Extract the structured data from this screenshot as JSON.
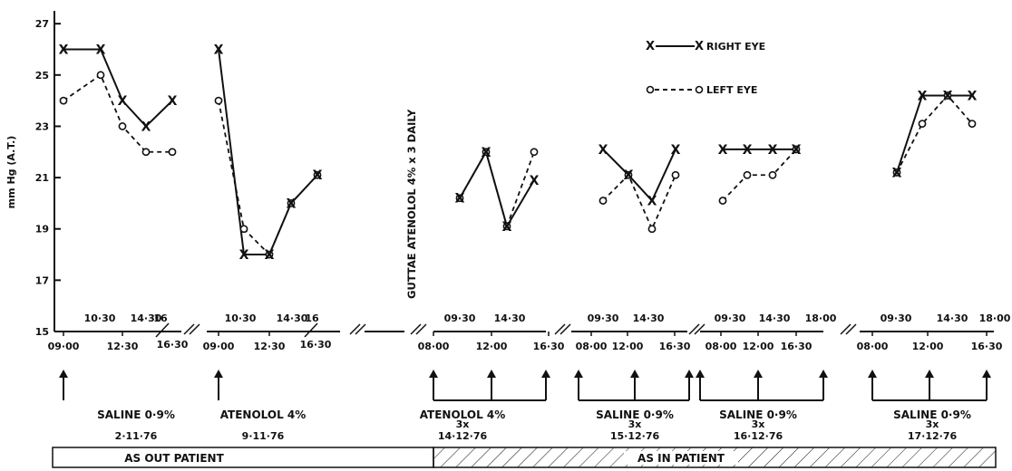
{
  "chart_data": {
    "type": "line",
    "title": "",
    "xlabel": "",
    "ylabel": "mm Hg (A.T.)",
    "ylim": [
      15,
      27.5
    ],
    "y_ticks": [
      "15",
      "17",
      "19",
      "21",
      "23",
      "25",
      "27"
    ],
    "grid": false,
    "legend_position": "top-right",
    "legend": {
      "right": "RIGHT EYE",
      "left": "LEFT EYE"
    },
    "vertical_note": "GUTTAE ATENOLOL 4% x 3 DAILY",
    "status_labels": {
      "out_patient": "AS OUT PATIENT",
      "in_patient": "AS IN PATIENT"
    },
    "sessions": [
      {
        "id": "s1",
        "treatment": "SALINE 0·9%",
        "dose": "",
        "date": "2·11·76",
        "ticks_lower": [
          "09·00",
          "12·30"
        ],
        "ticks_upper": [
          "10·30",
          "14·30",
          "16"
        ],
        "ticks_extra": [
          "16·30"
        ],
        "series": [
          {
            "name": "RIGHT EYE",
            "values": [
              26,
              26,
              24,
              23,
              24
            ]
          },
          {
            "name": "LEFT EYE",
            "values": [
              24,
              25,
              23,
              22,
              22
            ]
          }
        ]
      },
      {
        "id": "s2",
        "treatment": "ATENOLOL 4%",
        "dose": "",
        "date": "9·11·76",
        "ticks_lower": [
          "09·00",
          "12·30"
        ],
        "ticks_upper": [
          "10·30",
          "14·30",
          "16"
        ],
        "ticks_extra": [
          "16·30"
        ],
        "series": [
          {
            "name": "RIGHT EYE",
            "values": [
              26,
              18,
              18,
              20,
              21.1
            ]
          },
          {
            "name": "LEFT EYE",
            "values": [
              24,
              19,
              18,
              20,
              21.1
            ]
          }
        ]
      },
      {
        "id": "s3",
        "treatment": "ATENOLOL 4%",
        "dose": "3x",
        "date": "14·12·76",
        "ticks_lower": [
          "08·00",
          "12·00",
          "16·30"
        ],
        "ticks_upper": [
          "09·30",
          "14·30"
        ],
        "ticks_extra": [],
        "series": [
          {
            "name": "RIGHT EYE",
            "values": [
              20.2,
              22,
              19.1,
              20.9
            ]
          },
          {
            "name": "LEFT EYE",
            "values": [
              20.2,
              22,
              19.1,
              22
            ]
          }
        ]
      },
      {
        "id": "s4",
        "treatment": "SALINE 0·9%",
        "dose": "3x",
        "date": "15·12·76",
        "ticks_lower": [
          "08·00",
          "12·00",
          "16·30"
        ],
        "ticks_upper": [
          "09·30",
          "14·30"
        ],
        "ticks_extra": [],
        "series": [
          {
            "name": "RIGHT EYE",
            "values": [
              22.1,
              21.1,
              20.1,
              22.1
            ]
          },
          {
            "name": "LEFT EYE",
            "values": [
              20.1,
              21.1,
              19,
              21.1
            ]
          }
        ]
      },
      {
        "id": "s5",
        "treatment": "SALINE 0·9%",
        "dose": "3x",
        "date": "16·12·76",
        "ticks_lower": [
          "08·00",
          "12·00",
          "16·30"
        ],
        "ticks_upper": [
          "09·30",
          "14·30",
          "18·00"
        ],
        "ticks_extra": [],
        "series": [
          {
            "name": "RIGHT EYE",
            "values": [
              22.1,
              22.1,
              22.1,
              22.1
            ]
          },
          {
            "name": "LEFT EYE",
            "values": [
              20.1,
              21.1,
              21.1,
              22.1
            ]
          }
        ]
      },
      {
        "id": "s6",
        "treatment": "SALINE 0·9%",
        "dose": "3x",
        "date": "17·12·76",
        "ticks_lower": [
          "08·00",
          "12·00",
          "16·30"
        ],
        "ticks_upper": [
          "09·30",
          "14·30",
          "18·00"
        ],
        "ticks_extra": [],
        "series": [
          {
            "name": "RIGHT EYE",
            "values": [
              21.2,
              24.2,
              24.2,
              24.2
            ]
          },
          {
            "name": "LEFT EYE",
            "values": [
              21.2,
              23.1,
              24.2,
              23.1
            ]
          }
        ]
      }
    ]
  }
}
